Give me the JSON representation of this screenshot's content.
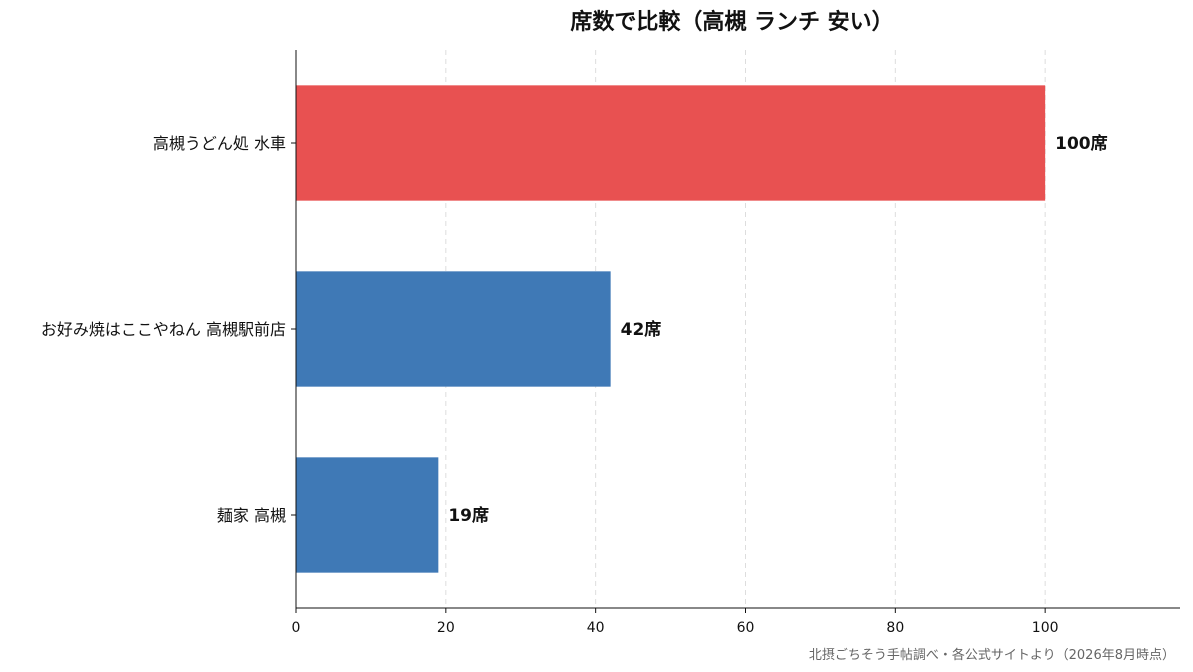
{
  "chart_data": {
    "type": "bar",
    "orientation": "horizontal",
    "title": "席数で比較（高槻 ランチ 安い）",
    "categories": [
      "高槻うどん処 水車",
      "お好み焼はここやねん 高槻駅前店",
      "麺家 高槻"
    ],
    "values": [
      100,
      42,
      19
    ],
    "value_labels": [
      "100席",
      "42席",
      "19席"
    ],
    "bar_colors": [
      "#e85151",
      "#3f79b6",
      "#3f79b6"
    ],
    "xlim": [
      0,
      118
    ],
    "xticks": [
      0,
      20,
      40,
      60,
      80,
      100
    ],
    "xtick_labels": [
      "0",
      "20",
      "40",
      "60",
      "80",
      "100"
    ],
    "grid": "x-dashed",
    "xlabel": "",
    "ylabel": "",
    "source_note": "北摂ごちそう手帖調べ・各公式サイトより（2026年8月時点）"
  }
}
